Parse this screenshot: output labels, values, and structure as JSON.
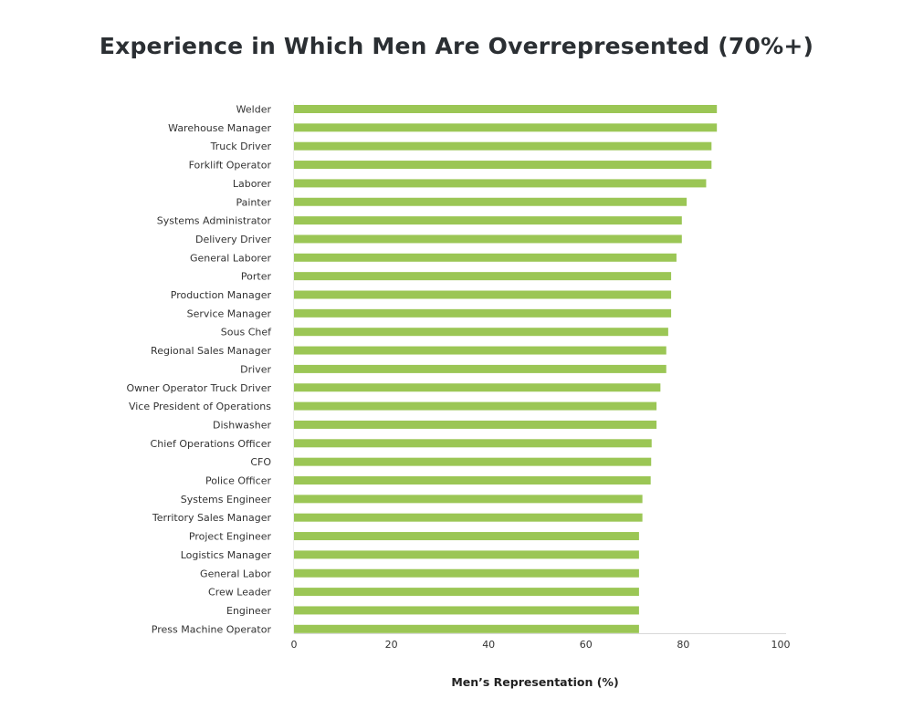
{
  "chart_data": {
    "type": "bar",
    "orientation": "horizontal",
    "title": "Experience in Which Men Are Overrepresented (70%+)",
    "xlabel": "Men’s Representation (%)",
    "ylabel": "",
    "xlim": [
      0,
      100
    ],
    "xticks": [
      0,
      20,
      40,
      60,
      80,
      100
    ],
    "grid": false,
    "bar_color": "#9bc655",
    "categories": [
      "Welder",
      "Warehouse Manager",
      "Truck Driver",
      "Forklift Operator",
      "Laborer",
      "Painter",
      "Systems Administrator",
      "Delivery Driver",
      "General Laborer",
      "Porter",
      "Production Manager",
      "Service Manager",
      "Sous Chef",
      "Regional Sales Manager",
      "Driver",
      "Owner Operator Truck Driver",
      "Vice President of Operations",
      "Dishwasher",
      "Chief Operations Officer",
      "CFO",
      "Police Officer",
      "Systems Engineer",
      "Territory Sales Manager",
      "Project Engineer",
      "Logistics Manager",
      "General Labor",
      "Crew Leader",
      "Engineer",
      "Press Machine Operator"
    ],
    "values": [
      86.9,
      86.9,
      85.8,
      85.8,
      84.7,
      80.7,
      79.7,
      79.7,
      78.6,
      77.5,
      77.5,
      77.5,
      76.9,
      76.5,
      76.5,
      75.3,
      74.5,
      74.5,
      73.5,
      73.4,
      73.3,
      71.6,
      71.6,
      70.9,
      70.9,
      70.9,
      70.9,
      70.9,
      70.9
    ]
  }
}
